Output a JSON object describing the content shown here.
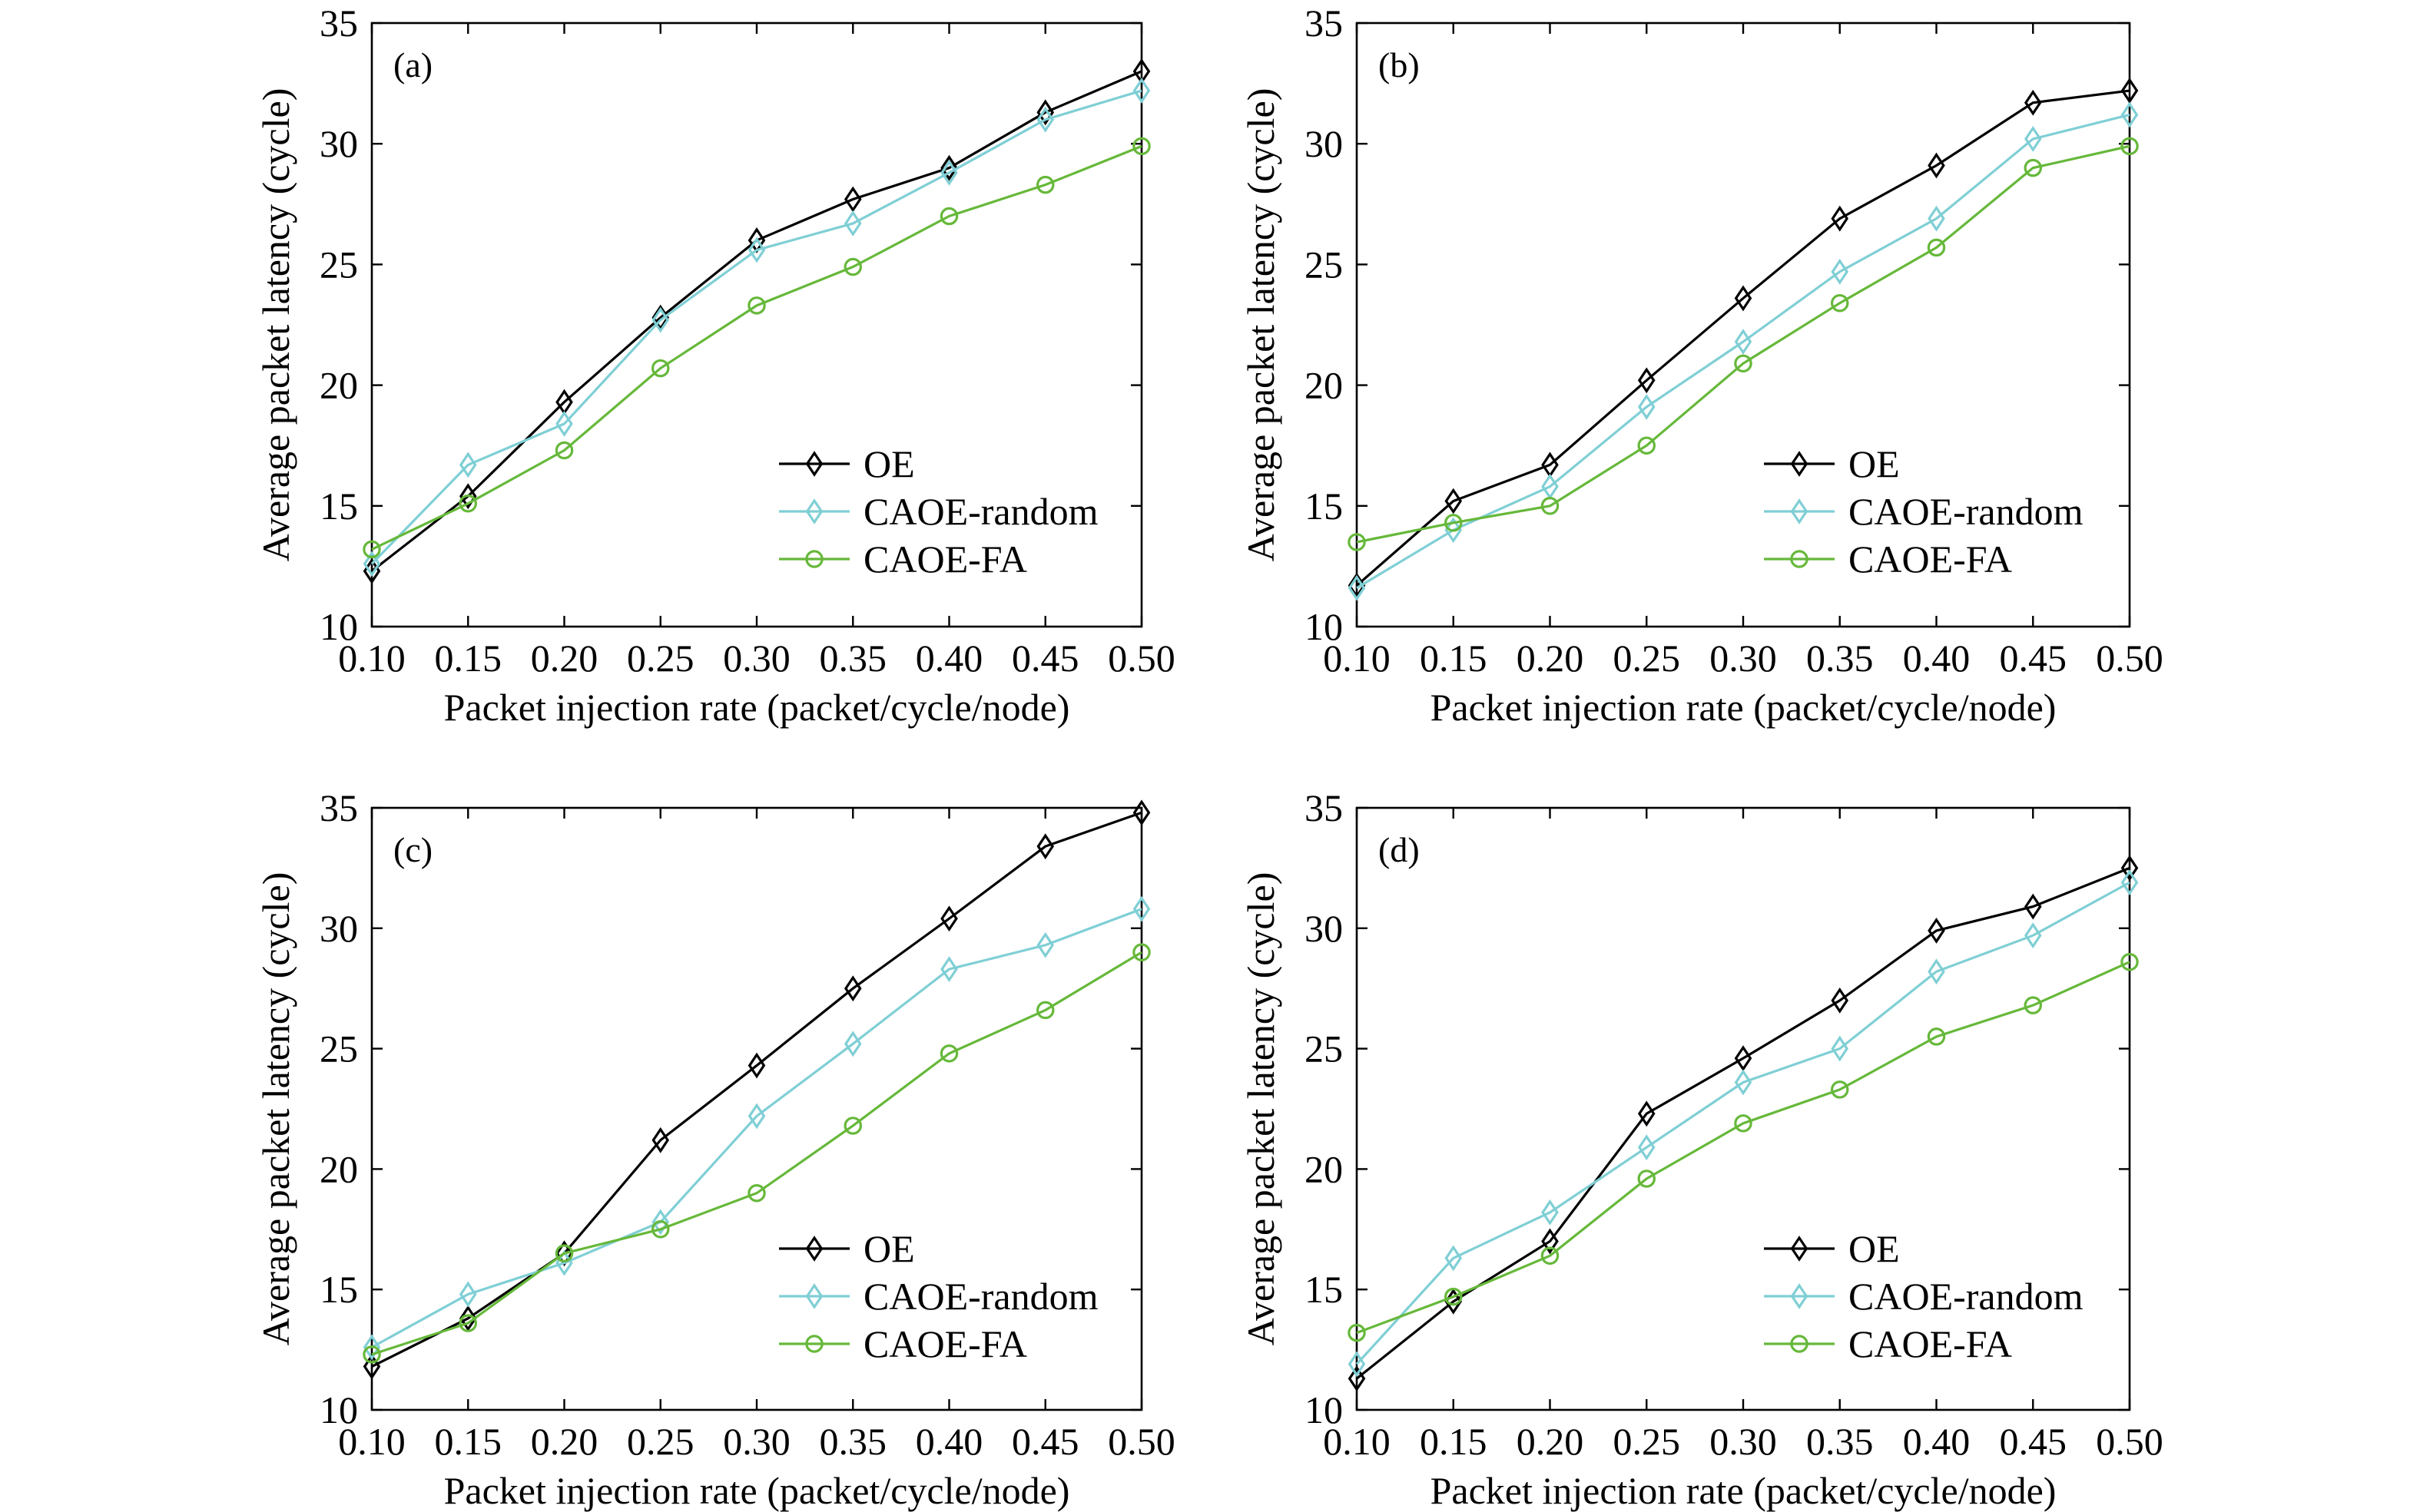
{
  "chart_data": [
    {
      "type": "line",
      "panel_label": "(a)",
      "xlabel": "Packet injection rate (packet/cycle/node)",
      "ylabel": "Average packet latency (cycle)",
      "xlim": [
        0.1,
        0.5
      ],
      "ylim": [
        10,
        35
      ],
      "x_ticks": [
        "0.10",
        "0.15",
        "0.20",
        "0.25",
        "0.30",
        "0.35",
        "0.40",
        "0.45",
        "0.50"
      ],
      "y_ticks": [
        "10",
        "15",
        "20",
        "25",
        "30",
        "35"
      ],
      "grid": false,
      "legend_position": "lower-right",
      "x": [
        0.1,
        0.15,
        0.2,
        0.25,
        0.3,
        0.35,
        0.4,
        0.45,
        0.5
      ],
      "series": [
        {
          "name": "OE",
          "color": "#000000",
          "marker": "diamond",
          "values": [
            12.3,
            15.4,
            19.3,
            22.8,
            26.0,
            27.7,
            29.0,
            31.3,
            33.0
          ]
        },
        {
          "name": "CAOE-random",
          "color": "#7fcfd5",
          "marker": "diamond",
          "values": [
            12.6,
            16.7,
            18.4,
            22.7,
            25.6,
            26.7,
            28.8,
            31.0,
            32.2
          ]
        },
        {
          "name": "CAOE-FA",
          "color": "#66b83a",
          "marker": "circle",
          "values": [
            13.2,
            15.1,
            17.3,
            20.7,
            23.3,
            24.9,
            27.0,
            28.3,
            29.9
          ]
        }
      ]
    },
    {
      "type": "line",
      "panel_label": "(b)",
      "xlabel": "Packet injection rate (packet/cycle/node)",
      "ylabel": "Average packet latency (cycle)",
      "xlim": [
        0.1,
        0.5
      ],
      "ylim": [
        10,
        35
      ],
      "x_ticks": [
        "0.10",
        "0.15",
        "0.20",
        "0.25",
        "0.30",
        "0.35",
        "0.40",
        "0.45",
        "0.50"
      ],
      "y_ticks": [
        "10",
        "15",
        "20",
        "25",
        "30",
        "35"
      ],
      "grid": false,
      "legend_position": "lower-right",
      "x": [
        0.1,
        0.15,
        0.2,
        0.25,
        0.3,
        0.35,
        0.4,
        0.45,
        0.5
      ],
      "series": [
        {
          "name": "OE",
          "color": "#000000",
          "marker": "diamond",
          "values": [
            11.7,
            15.2,
            16.7,
            20.2,
            23.6,
            26.9,
            29.1,
            31.7,
            32.2
          ]
        },
        {
          "name": "CAOE-random",
          "color": "#7fcfd5",
          "marker": "diamond",
          "values": [
            11.6,
            14.0,
            15.8,
            19.1,
            21.8,
            24.7,
            26.9,
            30.2,
            31.2
          ]
        },
        {
          "name": "CAOE-FA",
          "color": "#66b83a",
          "marker": "circle",
          "values": [
            13.5,
            14.3,
            15.0,
            17.5,
            20.9,
            23.4,
            25.7,
            29.0,
            29.9
          ]
        }
      ]
    },
    {
      "type": "line",
      "panel_label": "(c)",
      "xlabel": "Packet injection rate (packet/cycle/node)",
      "ylabel": "Average packet latency (cycle)",
      "xlim": [
        0.1,
        0.5
      ],
      "ylim": [
        10,
        35
      ],
      "x_ticks": [
        "0.10",
        "0.15",
        "0.20",
        "0.25",
        "0.30",
        "0.35",
        "0.40",
        "0.45",
        "0.50"
      ],
      "y_ticks": [
        "10",
        "15",
        "20",
        "25",
        "30",
        "35"
      ],
      "grid": false,
      "legend_position": "lower-right",
      "x": [
        0.1,
        0.15,
        0.2,
        0.25,
        0.3,
        0.35,
        0.4,
        0.45,
        0.5
      ],
      "series": [
        {
          "name": "OE",
          "color": "#000000",
          "marker": "diamond",
          "values": [
            11.8,
            13.8,
            16.5,
            21.2,
            24.3,
            27.5,
            30.4,
            33.4,
            34.8
          ]
        },
        {
          "name": "CAOE-random",
          "color": "#7fcfd5",
          "marker": "diamond",
          "values": [
            12.6,
            14.8,
            16.1,
            17.8,
            22.2,
            25.2,
            28.3,
            29.3,
            30.8
          ]
        },
        {
          "name": "CAOE-FA",
          "color": "#66b83a",
          "marker": "circle",
          "values": [
            12.3,
            13.6,
            16.5,
            17.5,
            19.0,
            21.8,
            24.8,
            26.6,
            29.0
          ]
        }
      ]
    },
    {
      "type": "line",
      "panel_label": "(d)",
      "xlabel": "Packet injection rate (packet/cycle/node)",
      "ylabel": "Average packet latency (cycle)",
      "xlim": [
        0.1,
        0.5
      ],
      "ylim": [
        10,
        35
      ],
      "x_ticks": [
        "0.10",
        "0.15",
        "0.20",
        "0.25",
        "0.30",
        "0.35",
        "0.40",
        "0.45",
        "0.50"
      ],
      "y_ticks": [
        "10",
        "15",
        "20",
        "25",
        "30",
        "35"
      ],
      "grid": false,
      "legend_position": "lower-right",
      "x": [
        0.1,
        0.15,
        0.2,
        0.25,
        0.3,
        0.35,
        0.4,
        0.45,
        0.5
      ],
      "series": [
        {
          "name": "OE",
          "color": "#000000",
          "marker": "diamond",
          "values": [
            11.3,
            14.5,
            17.0,
            22.3,
            24.6,
            27.0,
            29.9,
            30.9,
            32.5
          ]
        },
        {
          "name": "CAOE-random",
          "color": "#7fcfd5",
          "marker": "diamond",
          "values": [
            11.9,
            16.3,
            18.2,
            20.9,
            23.6,
            25.0,
            28.2,
            29.7,
            31.9
          ]
        },
        {
          "name": "CAOE-FA",
          "color": "#66b83a",
          "marker": "circle",
          "values": [
            13.2,
            14.7,
            16.4,
            19.6,
            21.9,
            23.3,
            25.5,
            26.8,
            28.6
          ]
        }
      ]
    }
  ]
}
